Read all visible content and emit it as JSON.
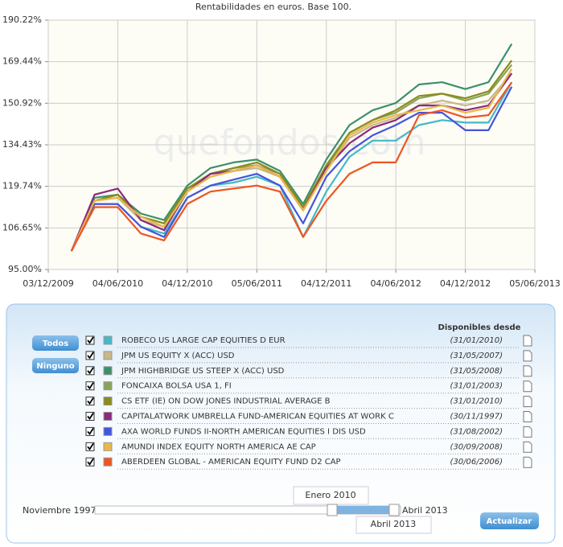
{
  "chart_data": {
    "type": "line",
    "title": "Rentabilidades en euros. Base 100.",
    "watermark": "quefondos.com",
    "log_scale": true,
    "grid": true,
    "x": [
      2,
      4,
      6,
      8,
      10,
      12,
      14,
      16,
      18,
      20,
      22,
      24,
      26,
      28,
      30,
      32,
      34,
      36,
      38,
      40
    ],
    "xlim": [
      0,
      42
    ],
    "xticks": [
      {
        "value": 0,
        "label": "03/12/2009"
      },
      {
        "value": 6,
        "label": "04/06/2010"
      },
      {
        "value": 12,
        "label": "04/12/2010"
      },
      {
        "value": 18,
        "label": "05/06/2011"
      },
      {
        "value": 24,
        "label": "04/12/2011"
      },
      {
        "value": 30,
        "label": "04/06/2012"
      },
      {
        "value": 36,
        "label": "04/12/2012"
      },
      {
        "value": 42,
        "label": "05/06/2013"
      }
    ],
    "ylim": [
      95,
      190.22
    ],
    "yticks": [
      {
        "value": 95,
        "label": "95.00%"
      },
      {
        "value": 106.65,
        "label": "106.65%"
      },
      {
        "value": 119.74,
        "label": "119.74%"
      },
      {
        "value": 134.43,
        "label": "134.43%"
      },
      {
        "value": 150.92,
        "label": "150.92%"
      },
      {
        "value": 169.44,
        "label": "169.44%"
      },
      {
        "value": 190.22,
        "label": "190.22%"
      }
    ],
    "series": [
      {
        "name": "ROBECO US LARGE CAP EQUITIES D EUR",
        "color": "#44b8c8",
        "values": [
          100,
          114,
          114,
          107,
          105,
          116,
          120,
          121,
          123,
          120,
          104,
          118,
          130,
          136,
          136,
          142,
          144,
          143,
          143,
          160
        ]
      },
      {
        "name": "JPM US EQUITY X (ACC) USD",
        "color": "#c9b78a",
        "values": [
          100,
          115,
          116,
          109,
          107,
          118,
          123,
          125,
          126,
          123,
          112,
          125,
          137,
          142,
          145,
          150,
          152,
          150,
          152,
          164
        ]
      },
      {
        "name": "JPM HIGHBRIDGE US STEEP X (ACC) USD",
        "color": "#3d8f6c",
        "values": [
          100,
          116,
          117,
          111,
          109,
          120,
          126,
          128,
          129,
          125,
          114,
          129,
          142,
          148,
          151,
          159,
          160,
          157,
          160,
          178
        ]
      },
      {
        "name": "FONCAIXA BOLSA USA 1, FI",
        "color": "#8aa35a",
        "values": [
          100,
          115,
          117,
          110,
          108,
          119,
          124,
          126,
          127,
          124,
          113,
          126,
          139,
          144,
          147,
          153,
          155,
          152,
          155,
          168
        ]
      },
      {
        "name": "CS ETF (IE) ON DOW JONES INDUSTRIAL AVERAGE B",
        "color": "#8b8b1e",
        "values": [
          100,
          115,
          117,
          110,
          108,
          119,
          124,
          126,
          128,
          124,
          113,
          127,
          139,
          144,
          148,
          154,
          155,
          153,
          156,
          170
        ]
      },
      {
        "name": "CAPITALATWORK UMBRELLA FUND-AMERICAN EQUITIES AT WORK C",
        "color": "#8b2a7a",
        "values": [
          100,
          117,
          119,
          109,
          106,
          118,
          124,
          125,
          127,
          123,
          112,
          126,
          135,
          141,
          144,
          150,
          150,
          148,
          150,
          164
        ]
      },
      {
        "name": "AXA WORLD FUNDS II-NORTH AMERICAN EQUITIES I DIS USD",
        "color": "#4455dd",
        "values": [
          100,
          114,
          114,
          107,
          104,
          116,
          120,
          122,
          124,
          120,
          108,
          123,
          132,
          138,
          142,
          147,
          147,
          140,
          140,
          158
        ]
      },
      {
        "name": "AMUNDI INDEX EQUITY NORTH AMERICA AE CAP",
        "color": "#e8b84a",
        "values": [
          100,
          115,
          116,
          110,
          107,
          118,
          123,
          125,
          127,
          123,
          112,
          125,
          138,
          143,
          146,
          148,
          150,
          147,
          149,
          166
        ]
      },
      {
        "name": "ABERDEEN GLOBAL - AMERICAN EQUITY FUND D2 CAP",
        "color": "#ee5522",
        "values": [
          100,
          113,
          113,
          105,
          103,
          114,
          118,
          119,
          120,
          118,
          104,
          115,
          124,
          128,
          128,
          146,
          148,
          145,
          146,
          160
        ]
      }
    ]
  },
  "panel": {
    "header": "Disponibles desde",
    "since": [
      "(31/01/2010)",
      "(31/05/2007)",
      "(31/05/2008)",
      "(31/01/2003)",
      "(31/01/2010)",
      "(30/11/1997)",
      "(31/08/2002)",
      "(30/09/2008)",
      "(30/06/2006)"
    ],
    "buttons": {
      "all": "Todos",
      "none": "Ninguno",
      "update": "Actualizar"
    },
    "range": {
      "start": "Noviembre 1997",
      "end": "Abril 2013",
      "from": "Enero 2010",
      "to": "Abril 2013"
    }
  }
}
